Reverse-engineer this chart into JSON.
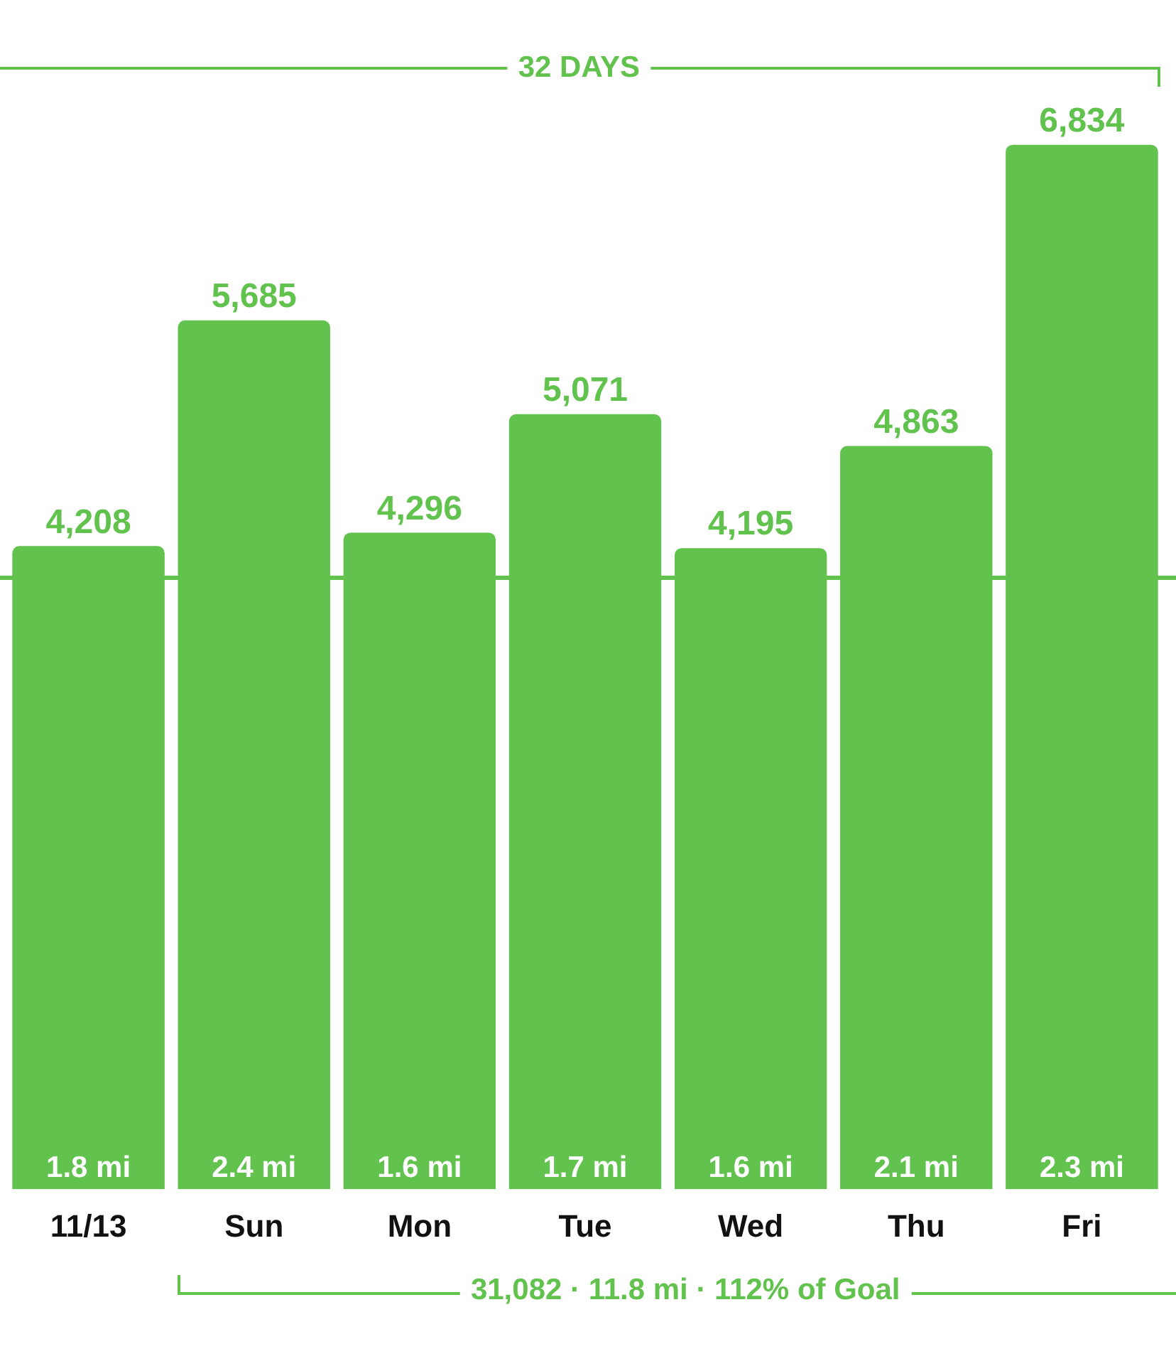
{
  "chart_data": {
    "type": "bar",
    "categories": [
      "11/13",
      "Sun",
      "Mon",
      "Tue",
      "Wed",
      "Thu",
      "Fri"
    ],
    "values": [
      4208,
      5685,
      4296,
      5071,
      4195,
      4863,
      6834
    ],
    "value_labels": [
      "4,208",
      "5,685",
      "4,296",
      "5,071",
      "4,195",
      "4,863",
      "6,834"
    ],
    "color": "#62c24e",
    "grid": false,
    "legend": false,
    "tick_labels": "x",
    "ref_lines": [
      {
        "axis": "y",
        "value": 4000,
        "color": "#62c24e"
      }
    ],
    "annotations": [
      "32 DAYS",
      "31,082 · 11.8 mi · 112% of Goal",
      {
        "text": "1.8 mi",
        "x": "11/13",
        "y": 0
      },
      {
        "text": "2.4 mi",
        "x": "Sun",
        "y": 0
      },
      {
        "text": "1.6 mi",
        "x": "Mon",
        "y": 0
      },
      {
        "text": "1.7 mi",
        "x": "Tue",
        "y": 0
      },
      {
        "text": "1.6 mi",
        "x": "Wed",
        "y": 0
      },
      {
        "text": "2.1 mi",
        "x": "Thu",
        "y": 0
      },
      {
        "text": "2.3 mi",
        "x": "Fri",
        "y": 0
      }
    ]
  }
}
